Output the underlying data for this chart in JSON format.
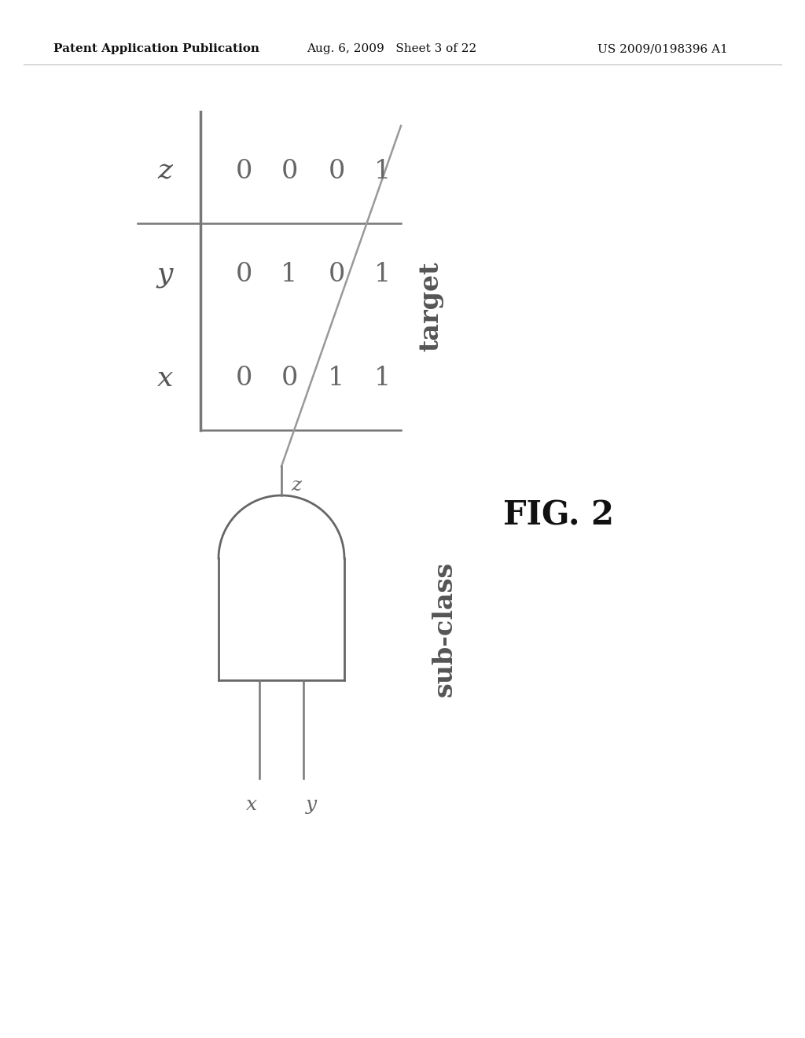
{
  "header_left": "Patent Application Publication",
  "header_mid": "Aug. 6, 2009   Sheet 3 of 22",
  "header_right": "US 2009/0198396 A1",
  "fig_label": "FIG. 2",
  "table_label": "target",
  "gate_label": "sub-class",
  "row_labels": [
    "z",
    "y",
    "x"
  ],
  "col_values": [
    [
      "0",
      "0",
      "0",
      "1"
    ],
    [
      "0",
      "1",
      "0",
      "1"
    ],
    [
      "0",
      "0",
      "1",
      "1"
    ]
  ],
  "gate_inputs": [
    "x",
    "y"
  ],
  "gate_output": "z",
  "bg_color": "#ffffff",
  "line_color": "#666666",
  "text_color": "#111111",
  "header_fontsize": 11,
  "label_fontsize": 26,
  "cell_fontsize": 24,
  "fig_label_fontsize": 30,
  "side_label_fontsize": 24
}
